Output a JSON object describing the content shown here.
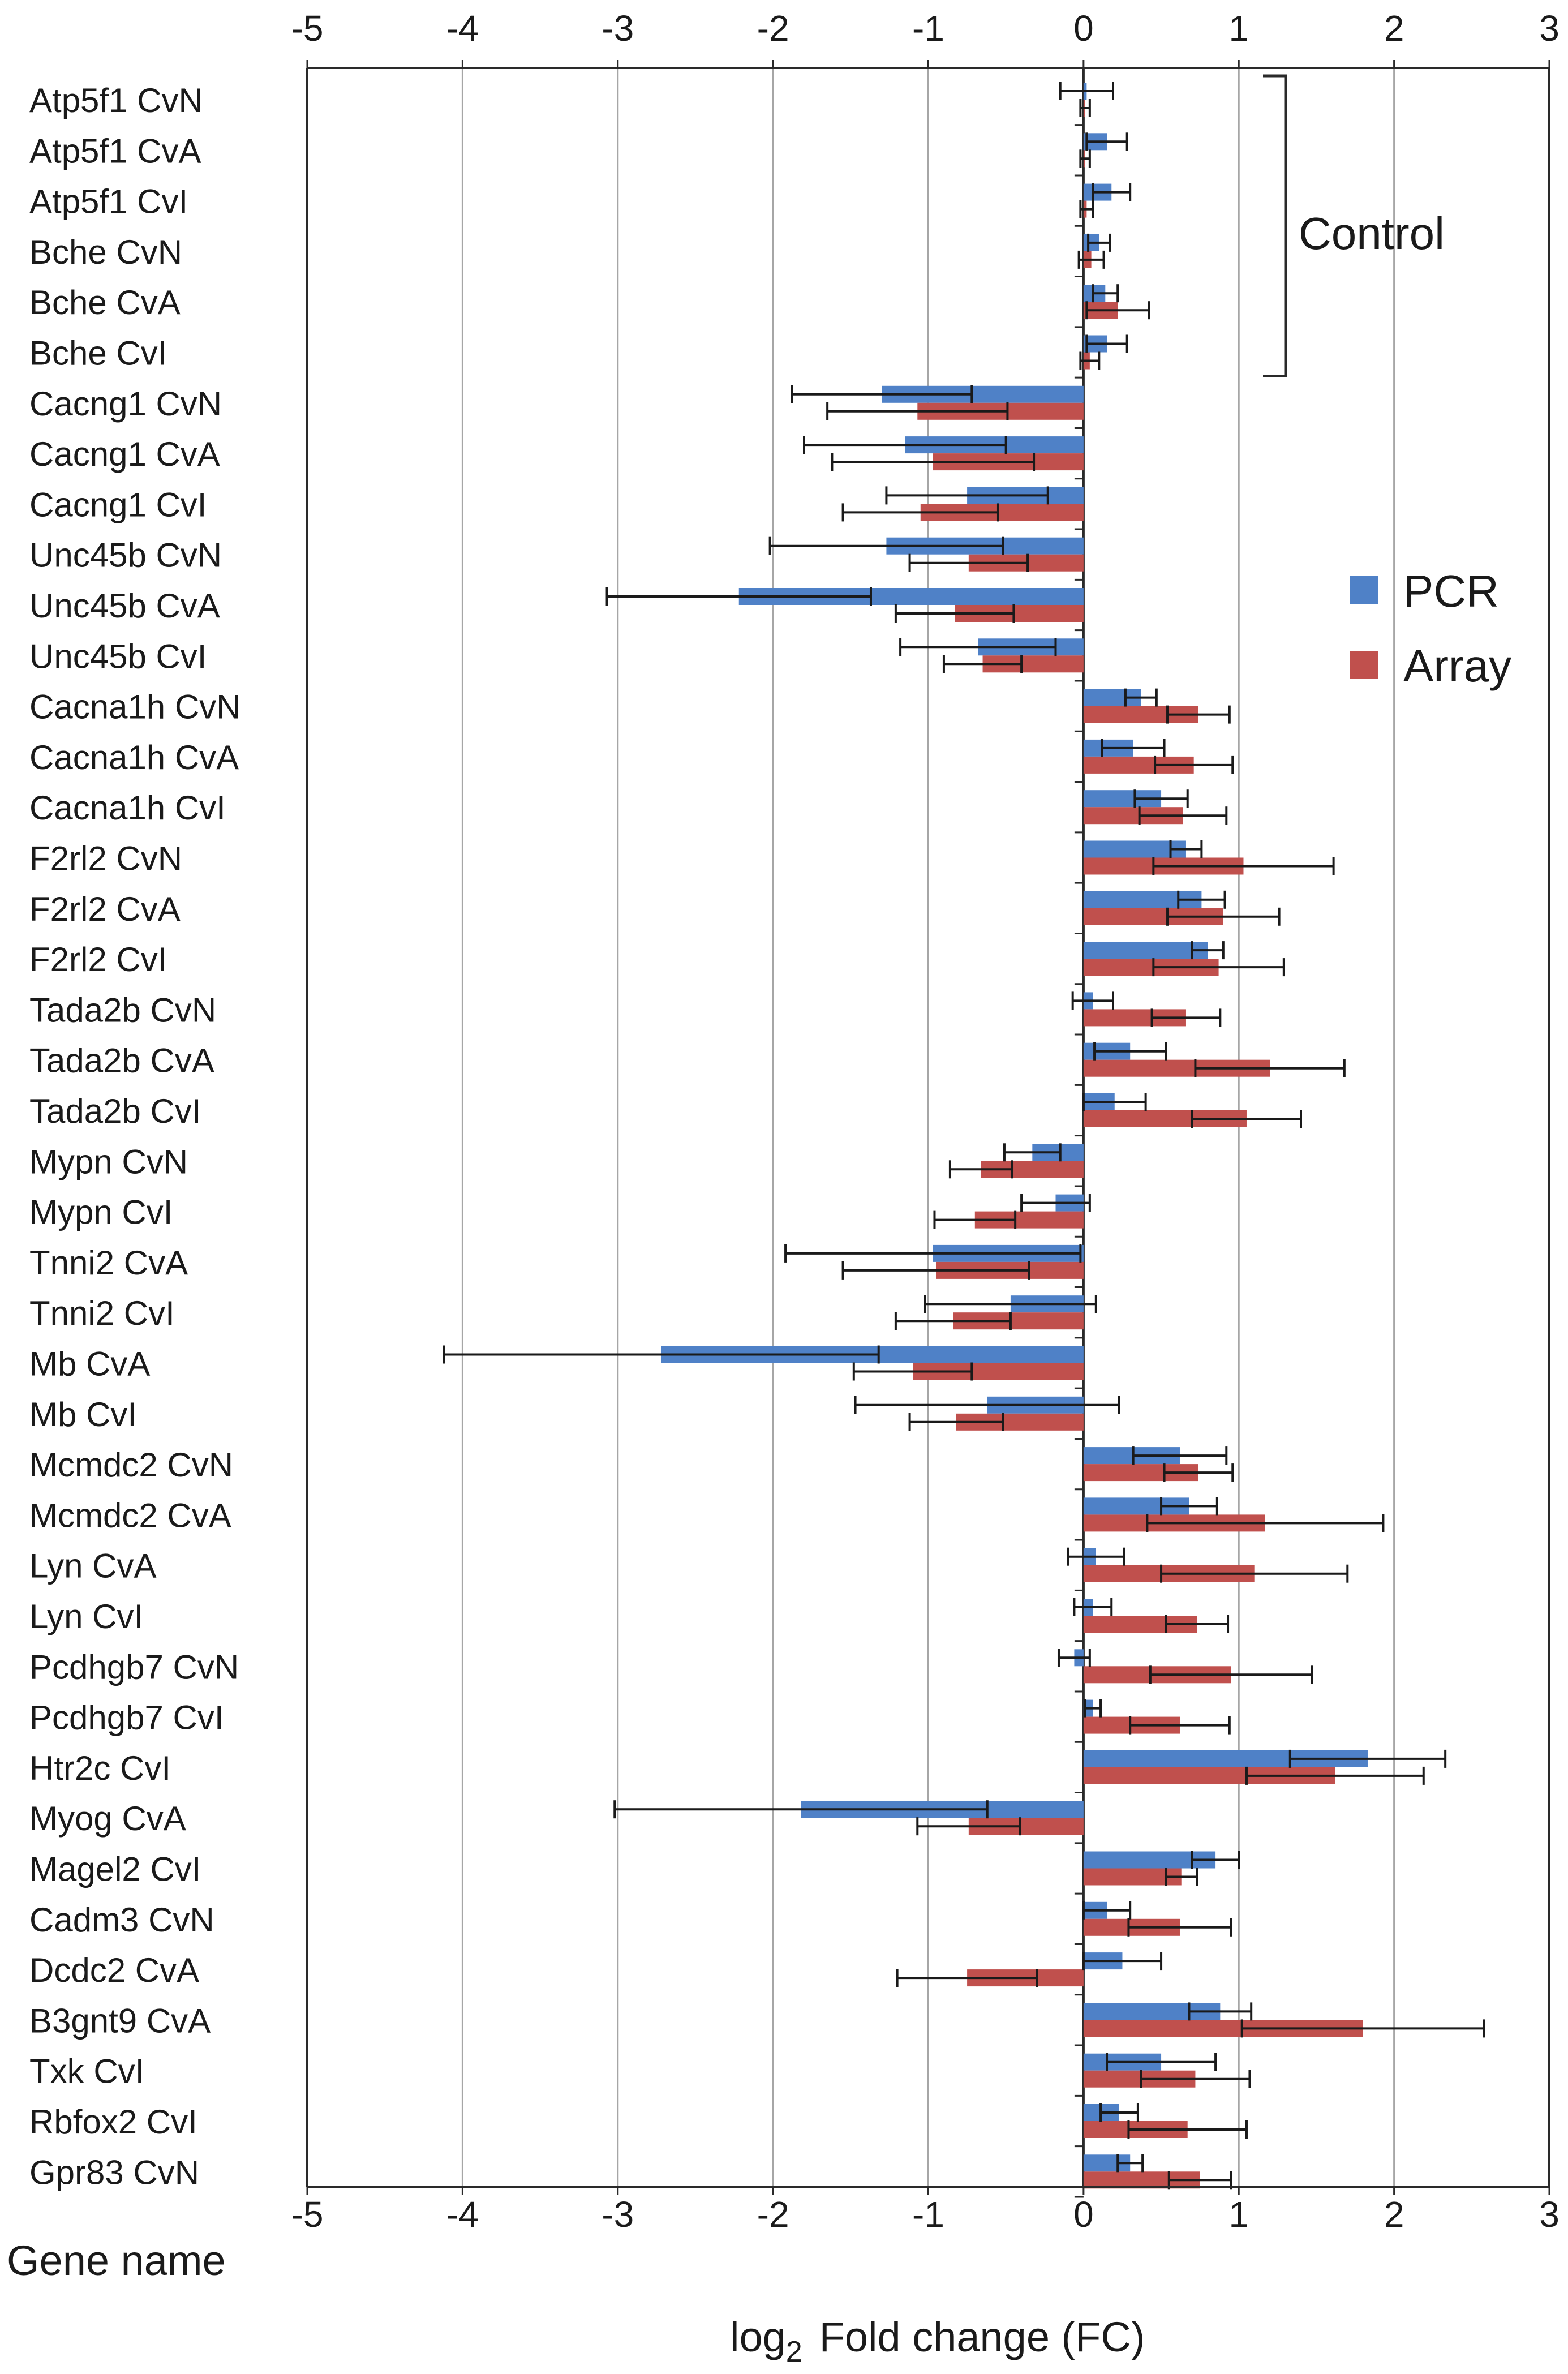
{
  "chart_data": {
    "type": "bar",
    "orientation": "horizontal",
    "xlabel": "log2 Fold change (FC)",
    "xlabel_main": "log",
    "xlabel_sub": "2",
    "xlabel_rest": "Fold change (FC)",
    "ylabel": "Gene name",
    "xlim": [
      -5,
      3
    ],
    "xticks": [
      "-5",
      "-4",
      "-3",
      "-2",
      "-1",
      "0",
      "1",
      "2",
      "3"
    ],
    "grid": true,
    "legend_position": "right",
    "control_bracket_label": "Control",
    "control_bracket_rows": [
      0,
      5
    ],
    "colors": {
      "PCR": "#4f81c7",
      "Array": "#c0504d"
    },
    "categories": [
      "Atp5f1 CvN",
      "Atp5f1 CvA",
      "Atp5f1 CvI",
      "Bche CvN",
      "Bche CvA",
      "Bche CvI",
      "Cacng1 CvN",
      "Cacng1 CvA",
      "Cacng1 CvI",
      "Unc45b CvN",
      "Unc45b CvA",
      "Unc45b CvI",
      "Cacna1h CvN",
      "Cacna1h CvA",
      "Cacna1h CvI",
      "F2rl2 CvN",
      "F2rl2 CvA",
      "F2rl2 CvI",
      "Tada2b CvN",
      "Tada2b CvA",
      "Tada2b CvI",
      "Mypn CvN",
      "Mypn CvI",
      "Tnni2 CvA",
      "Tnni2 CvI",
      "Mb CvA",
      "Mb CvI",
      "Mcmdc2 CvN",
      "Mcmdc2 CvA",
      "Lyn CvA",
      "Lyn CvI",
      "Pcdhgb7 CvN",
      "Pcdhgb7 CvI",
      "Htr2c CvI",
      "Myog CvA",
      "Magel2 CvI",
      "Cadm3 CvN",
      "Dcdc2 CvA",
      "B3gnt9 CvA",
      "Txk CvI",
      "Rbfox2 CvI",
      "Gpr83 CvN"
    ],
    "series": [
      {
        "name": "PCR",
        "values": [
          0.02,
          0.15,
          0.18,
          0.1,
          0.14,
          0.15,
          -1.3,
          -1.15,
          -0.75,
          -1.27,
          -2.22,
          -0.68,
          0.37,
          0.32,
          0.5,
          0.66,
          0.76,
          0.8,
          0.06,
          0.3,
          0.2,
          -0.33,
          -0.18,
          -0.97,
          -0.47,
          -2.72,
          -0.62,
          0.62,
          0.68,
          0.08,
          0.06,
          -0.06,
          0.06,
          1.83,
          -1.82,
          0.85,
          0.15,
          0.25,
          0.88,
          0.5,
          0.23,
          0.3
        ],
        "errors": [
          0.17,
          0.13,
          0.12,
          0.07,
          0.08,
          0.13,
          0.58,
          0.65,
          0.52,
          0.75,
          0.85,
          0.5,
          0.1,
          0.2,
          0.17,
          0.1,
          0.15,
          0.1,
          0.13,
          0.23,
          0.2,
          0.18,
          0.22,
          0.95,
          0.55,
          1.4,
          0.85,
          0.3,
          0.18,
          0.18,
          0.12,
          0.1,
          0.05,
          0.5,
          1.2,
          0.15,
          0.15,
          0.25,
          0.2,
          0.35,
          0.12,
          0.08
        ]
      },
      {
        "name": "Array",
        "values": [
          0.01,
          0.01,
          0.02,
          0.05,
          0.22,
          0.04,
          -1.07,
          -0.97,
          -1.05,
          -0.74,
          -0.83,
          -0.65,
          0.74,
          0.71,
          0.64,
          1.03,
          0.9,
          0.87,
          0.66,
          1.2,
          1.05,
          -0.66,
          -0.7,
          -0.95,
          -0.84,
          -1.1,
          -0.82,
          0.74,
          1.17,
          1.1,
          0.73,
          0.95,
          0.62,
          1.62,
          -0.74,
          0.63,
          0.62,
          -0.75,
          1.8,
          0.72,
          0.67,
          0.75
        ],
        "errors": [
          0.03,
          0.03,
          0.04,
          0.08,
          0.2,
          0.06,
          0.58,
          0.65,
          0.5,
          0.38,
          0.38,
          0.25,
          0.2,
          0.25,
          0.28,
          0.58,
          0.36,
          0.42,
          0.22,
          0.48,
          0.35,
          0.2,
          0.26,
          0.6,
          0.37,
          0.38,
          0.3,
          0.22,
          0.76,
          0.6,
          0.2,
          0.52,
          0.32,
          0.57,
          0.33,
          0.1,
          0.33,
          0.45,
          0.78,
          0.35,
          0.38,
          0.2
        ]
      }
    ]
  }
}
